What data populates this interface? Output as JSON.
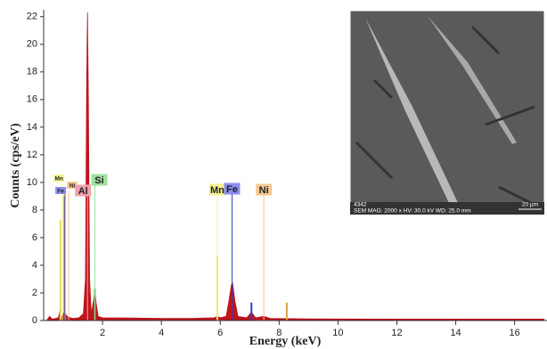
{
  "chart_data": {
    "type": "area",
    "y_label": "Counts (cps/eV)",
    "x_label": "Energy (keV)",
    "xlim": [
      0,
      17.1
    ],
    "ylim": [
      0,
      22.5
    ],
    "xticks": [
      2,
      4,
      6,
      8,
      10,
      12,
      14,
      16
    ],
    "yticks": [
      0,
      2,
      4,
      6,
      8,
      10,
      12,
      14,
      16,
      18,
      20,
      22
    ],
    "color": "#c0141c",
    "x": [
      0.1,
      0.2,
      0.3,
      0.5,
      0.55,
      0.6,
      0.7,
      0.8,
      0.9,
      1.0,
      1.2,
      1.35,
      1.42,
      1.46,
      1.49,
      1.52,
      1.56,
      1.62,
      1.7,
      1.74,
      1.78,
      1.85,
      2.0,
      3.0,
      4.0,
      5.0,
      5.8,
      5.9,
      6.0,
      6.2,
      6.3,
      6.38,
      6.42,
      6.5,
      6.6,
      6.9,
      7.06,
      7.2,
      7.48,
      7.7,
      9.0,
      12.0,
      17.0
    ],
    "values": [
      0,
      0.3,
      0.1,
      0.2,
      0.7,
      0.2,
      0.6,
      0.3,
      0.2,
      0.15,
      0.2,
      0.5,
      3,
      17,
      22.3,
      16,
      3,
      0.5,
      1.5,
      2.2,
      1.3,
      0.3,
      0.2,
      0.18,
      0.15,
      0.15,
      0.2,
      0.3,
      0.2,
      0.3,
      1.5,
      2.6,
      2.7,
      1.4,
      0.3,
      0.2,
      0.6,
      0.2,
      0.3,
      0.15,
      0.12,
      0.1,
      0.1
    ],
    "peaks": [
      {
        "x": 0.57,
        "value": 7.3,
        "color": "#e8e060"
      },
      {
        "x": 0.72,
        "value": 9.2,
        "color": "#e0a040"
      },
      {
        "x": 1.74,
        "value": 2.3,
        "color": "#40a040"
      },
      {
        "x": 5.9,
        "value": 4.7,
        "color": "#e8e060"
      },
      {
        "x": 7.06,
        "value": 1.3,
        "color": "#3040c0"
      },
      {
        "x": 8.26,
        "value": 1.3,
        "color": "#e0a040"
      }
    ],
    "elements": [
      {
        "label": "Mn",
        "energy": 0.64,
        "color": "#f4f08c"
      },
      {
        "label": "Ni",
        "energy": 0.85,
        "color": "#f4c890"
      },
      {
        "label": "Fe",
        "energy": 0.7,
        "color": "#8c8cf0"
      },
      {
        "label": "Al",
        "energy": 1.49,
        "color": "#f0a0b0"
      },
      {
        "label": "Si",
        "energy": 1.74,
        "color": "#a0e0a0"
      },
      {
        "label": "Mn",
        "energy": 5.9,
        "color": "#f4f08c"
      },
      {
        "label": "Fe",
        "energy": 6.4,
        "color": "#8c8cf0"
      },
      {
        "label": "Ni",
        "energy": 7.48,
        "color": "#f4c890"
      }
    ]
  },
  "inset": {
    "id": "4342",
    "caption": "SEM MAG: 2000 x HV: 30.0 kV WD: 25.0 mm",
    "scale": "20 µm"
  }
}
